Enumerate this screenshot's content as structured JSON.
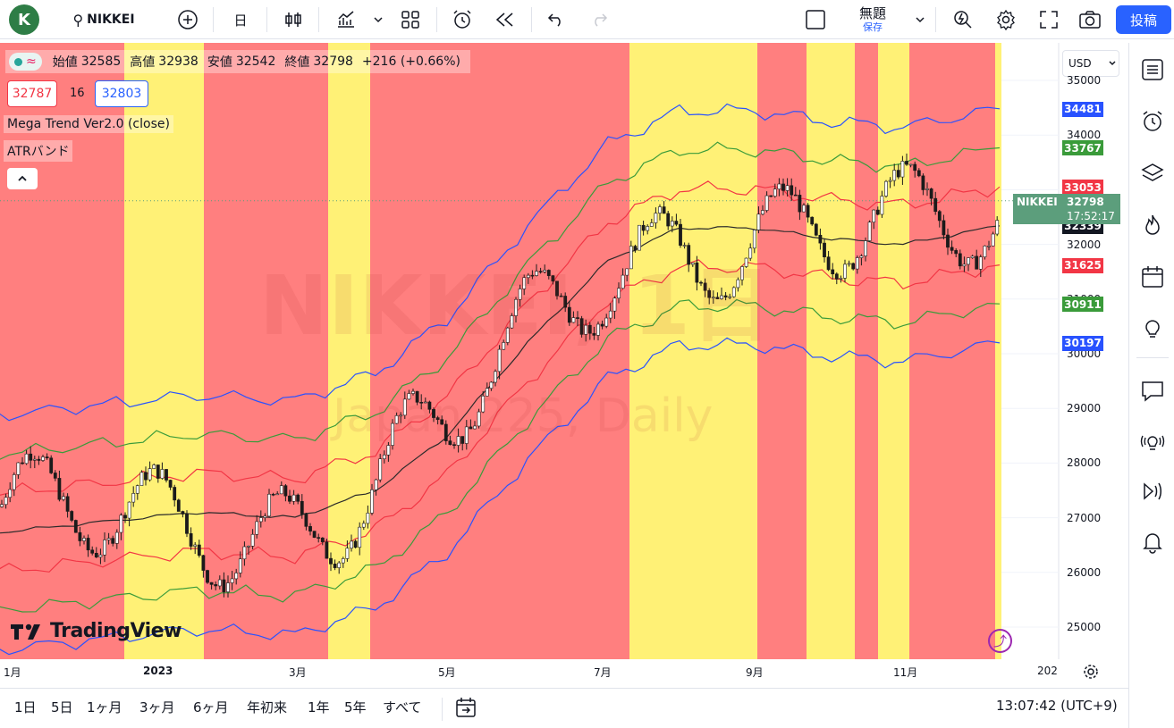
{
  "toolbar": {
    "avatar_letter": "K",
    "symbol": "NIKKEI",
    "interval": "日",
    "layout_name": "無題",
    "save_label": "保存",
    "publish_label": "投稿"
  },
  "legend": {
    "open_label": "始値",
    "open": "32585",
    "high_label": "高値",
    "high": "32938",
    "low_label": "安値",
    "low": "32542",
    "close_label": "終値",
    "close": "32798",
    "change": "+216 (+0.66%)",
    "bid": "32787",
    "spread": "16",
    "ask": "32803",
    "indicator1": "Mega Trend Ver2.0 (close)",
    "indicator2": "ATRバンド"
  },
  "watermark": {
    "line1": "NIKKEI, 1日",
    "line2": "Japan 225, Daily"
  },
  "currency": "USD",
  "colors": {
    "red_zone": "#ff7f7f",
    "yellow_zone": "#fff176",
    "blue_band": "#2952ff",
    "green_band": "#3a9b3a",
    "red_band": "#f23645",
    "mid_line": "#2a2a2a"
  },
  "price_axis": {
    "ticks": [
      "35000",
      "34000",
      "33000",
      "32000",
      "31000",
      "30000",
      "29000",
      "28000",
      "27000",
      "26000",
      "25000"
    ],
    "labels": [
      {
        "value": "34481",
        "color": "#2952ff"
      },
      {
        "value": "33767",
        "color": "#3a9b3a"
      },
      {
        "value": "33053",
        "color": "#f23645"
      },
      {
        "value": "32339",
        "color": "#131722"
      },
      {
        "value": "31625",
        "color": "#f23645"
      },
      {
        "value": "30911",
        "color": "#3a9b3a"
      },
      {
        "value": "30197",
        "color": "#2952ff"
      }
    ],
    "current": {
      "symbol": "NIKKEI",
      "price": "32798",
      "countdown": "17:52:17"
    }
  },
  "time_axis": [
    "1月",
    "2023",
    "3月",
    "5月",
    "7月",
    "9月",
    "11月",
    "202"
  ],
  "ranges": [
    "1日",
    "5日",
    "1ヶ月",
    "3ヶ月",
    "6ヶ月",
    "年初来",
    "1年",
    "5年",
    "すべて"
  ],
  "clock": "13:07:42 (UTC+9)",
  "brand": "TradingView",
  "chart_data": {
    "type": "candlestick",
    "title": "NIKKEI, 1日",
    "ylim": [
      24600,
      35300
    ],
    "zones": [
      "red",
      "yellow",
      "red",
      "yellow",
      "red",
      "yellow",
      "red",
      "yellow",
      "red",
      "yellow",
      "red",
      "yellow"
    ],
    "mid_line": [
      {
        "x": "2022-12",
        "y": 26700
      },
      {
        "x": "2023-01",
        "y": 26900
      },
      {
        "x": "2023-02",
        "y": 27100
      },
      {
        "x": "2023-03",
        "y": 27000
      },
      {
        "x": "2023-04",
        "y": 27500
      },
      {
        "x": "2023-05",
        "y": 28500
      },
      {
        "x": "2023-06",
        "y": 30200
      },
      {
        "x": "2023-07",
        "y": 31700
      },
      {
        "x": "2023-08",
        "y": 32300
      },
      {
        "x": "2023-09",
        "y": 32300
      },
      {
        "x": "2023-10",
        "y": 32100
      },
      {
        "x": "2023-11",
        "y": 32000
      },
      {
        "x": "2023-12",
        "y": 32339
      }
    ],
    "band_offsets": {
      "blue": 2142,
      "green": 1428,
      "red": 714
    }
  }
}
